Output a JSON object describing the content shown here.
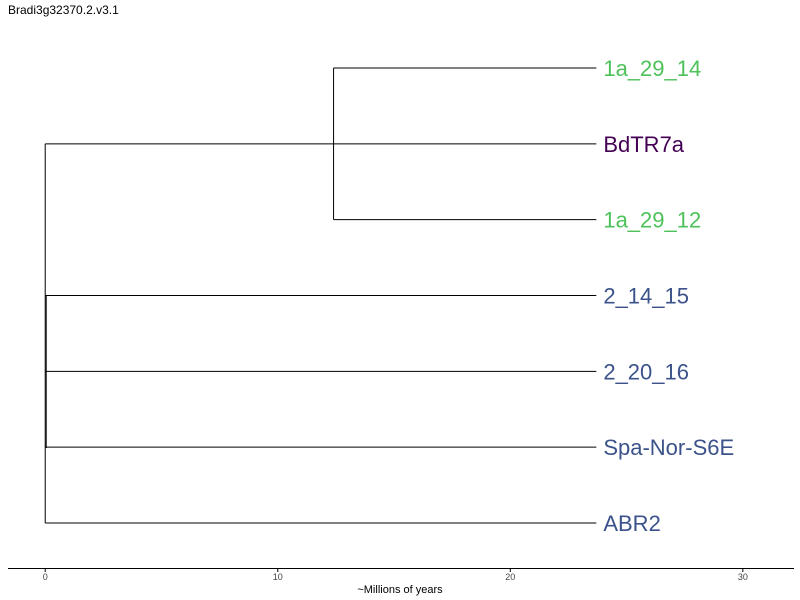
{
  "title": "Bradi3g32370.2.v3.1",
  "chart_data": {
    "type": "dendrogram",
    "xlabel": "~Millions of years",
    "x_ticks": [
      "0",
      "10",
      "20",
      "30"
    ],
    "xlim": [
      -1.6,
      32.2
    ],
    "tips_end_x": 23.7,
    "leaves": [
      {
        "label": "1a_29_14",
        "color": "#4ec25a"
      },
      {
        "label": "BdTR7a",
        "color": "#440154"
      },
      {
        "label": "1a_29_12",
        "color": "#4ec25a"
      },
      {
        "label": "2_14_15",
        "color": "#3b528b"
      },
      {
        "label": "2_20_16",
        "color": "#3b528b"
      },
      {
        "label": "Spa-Nor-S6E",
        "color": "#3b528b"
      },
      {
        "label": "ABR2",
        "color": "#3b528b"
      }
    ],
    "clades": [
      {
        "name": "inner",
        "node_x": 12.4,
        "children": [
          "1a_29_14",
          "1a_29_12"
        ]
      }
    ],
    "root_x": 0
  }
}
